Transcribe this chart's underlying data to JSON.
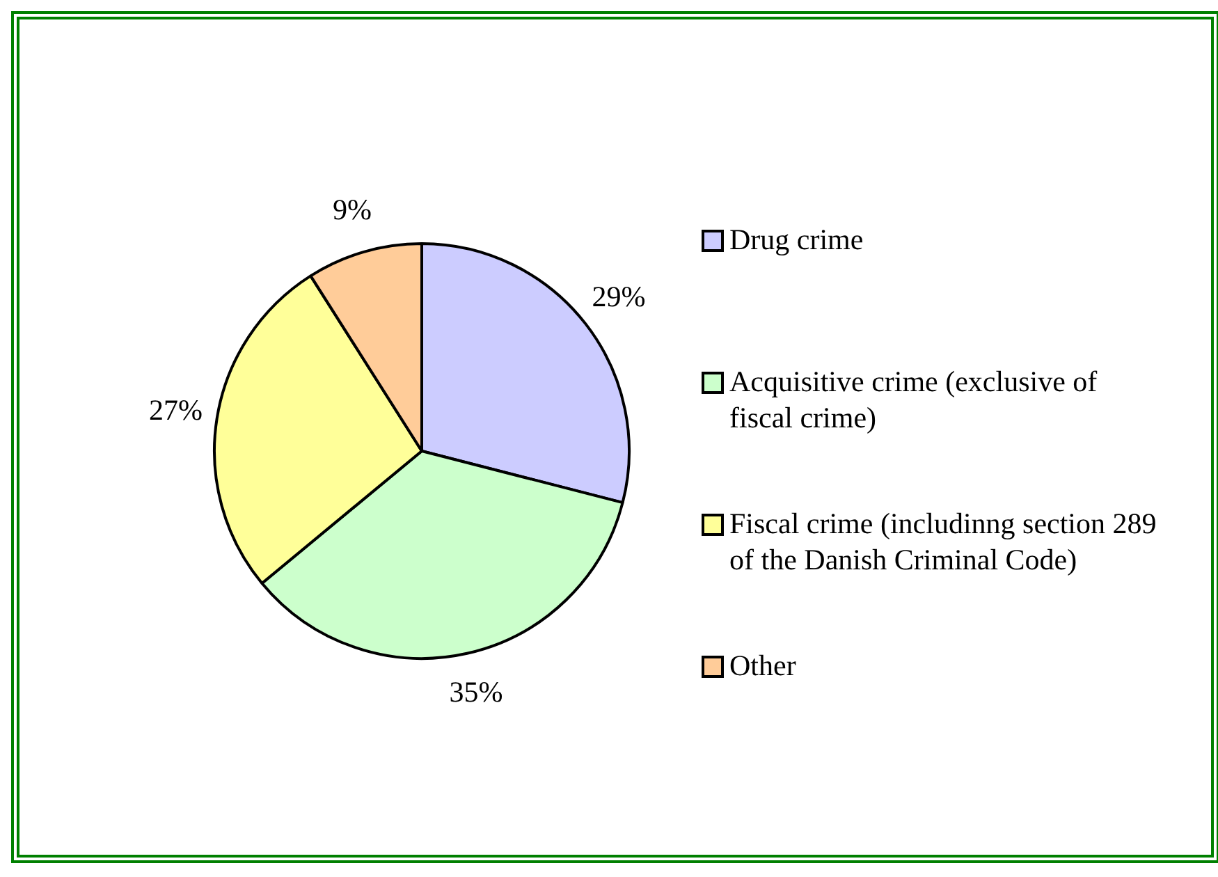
{
  "chart_data": {
    "type": "pie",
    "categories": [
      "Drug crime",
      "Acquisitive crime (exclusive of fiscal crime)",
      "Fiscal crime (includinng section 289 of the Danish Criminal Code)",
      "Other"
    ],
    "values": [
      29,
      35,
      27,
      9
    ],
    "colors": [
      "#ccccff",
      "#ccffcc",
      "#ffff99",
      "#ffcc99"
    ],
    "value_labels": [
      "29%",
      "35%",
      "27%",
      "9%"
    ],
    "legend": "right"
  }
}
